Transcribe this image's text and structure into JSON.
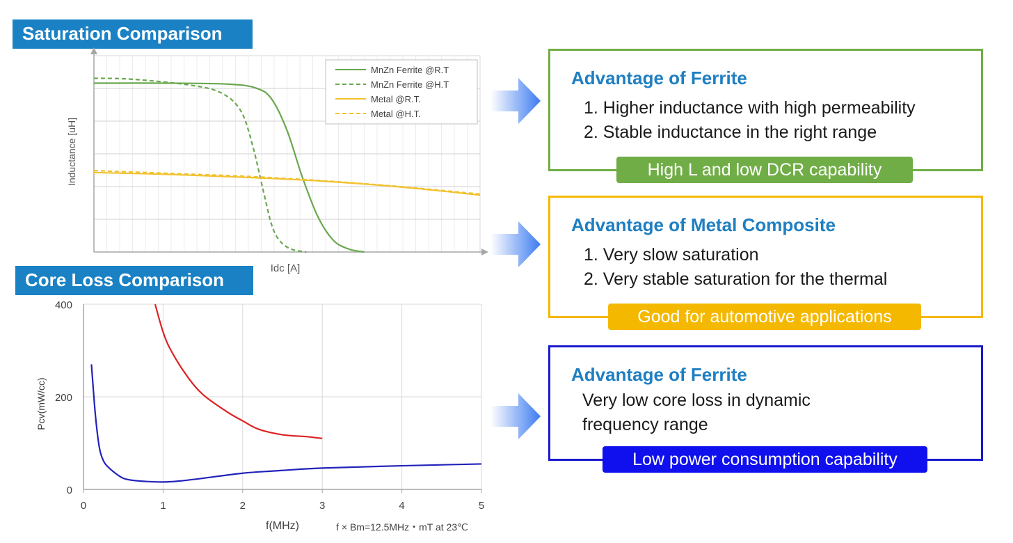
{
  "sections": {
    "saturation_title": "Saturation Comparison",
    "core_loss_title": "Core Loss Comparison",
    "title_bg": "#1a82c4"
  },
  "chart_data": [
    {
      "type": "line",
      "title": "Saturation Comparison",
      "xlabel": "Idc [A]",
      "ylabel": "Inductance [uH]",
      "xlim": [
        0,
        10
      ],
      "ylim": [
        0,
        10
      ],
      "grid": true,
      "axis_ticks_labeled": false,
      "legend_position": "top-right",
      "series": [
        {
          "name": "MnZn Ferrite @R.T",
          "color": "#6aa84f",
          "dash": "solid",
          "x": [
            0,
            2,
            3.5,
            4.2,
            4.6,
            5.0,
            5.4,
            5.8,
            6.2,
            6.6,
            7.0
          ],
          "y": [
            8.6,
            8.6,
            8.55,
            8.35,
            7.8,
            6.2,
            3.8,
            1.8,
            0.6,
            0.15,
            0.0
          ]
        },
        {
          "name": "MnZn Ferrite @H.T",
          "color": "#6aa84f",
          "dash": "dashed",
          "x": [
            0,
            1,
            2.5,
            3.3,
            3.8,
            4.1,
            4.4,
            4.6,
            4.8,
            5.1,
            5.5
          ],
          "y": [
            8.85,
            8.8,
            8.5,
            8.1,
            7.2,
            5.5,
            3.0,
            1.4,
            0.6,
            0.15,
            0.0
          ]
        },
        {
          "name": "Metal @R.T.",
          "color": "#f2c230",
          "dash": "solid",
          "x": [
            0,
            2,
            4,
            6,
            8,
            10
          ],
          "y": [
            4.05,
            3.95,
            3.8,
            3.6,
            3.3,
            2.9
          ]
        },
        {
          "name": "Metal @H.T.",
          "color": "#f2c230",
          "dash": "dashed",
          "x": [
            0,
            2,
            4,
            6,
            8,
            10
          ],
          "y": [
            4.15,
            4.0,
            3.85,
            3.62,
            3.32,
            2.95
          ]
        }
      ]
    },
    {
      "type": "line",
      "title": "Core Loss Comparison",
      "xlabel": "f(MHz)",
      "ylabel": "Pcv(mW/cc)",
      "xlim": [
        0,
        5
      ],
      "ylim": [
        0,
        400
      ],
      "x_ticks": [
        0,
        1,
        2,
        3,
        4,
        5
      ],
      "y_ticks": [
        0,
        200,
        400
      ],
      "grid": true,
      "annotation": "f × Bm=12.5MHz・mT at 23℃",
      "series": [
        {
          "color": "#dd2222",
          "x": [
            0.9,
            1.0,
            1.1,
            1.3,
            1.5,
            1.8,
            2.0,
            2.2,
            2.5,
            2.8,
            3.0
          ],
          "y": [
            400,
            340,
            300,
            245,
            205,
            168,
            148,
            130,
            118,
            114,
            110
          ]
        },
        {
          "color": "#2222bb",
          "x": [
            0.1,
            0.15,
            0.2,
            0.25,
            0.3,
            0.4,
            0.5,
            0.6,
            0.8,
            1.0,
            1.2,
            1.5,
            2.0,
            2.5,
            3.0,
            4.0,
            5.0
          ],
          "y": [
            270,
            160,
            90,
            62,
            50,
            35,
            24,
            20,
            17,
            16,
            18,
            24,
            35,
            41,
            46,
            51,
            55
          ]
        }
      ]
    }
  ],
  "advantages": [
    {
      "heading": "Advantage of Ferrite",
      "lines": [
        "1.  Higher inductance with high permeability",
        "2.  Stable inductance in the right range"
      ],
      "badge": "High L and low DCR capability",
      "border_color": "#70ad47",
      "badge_color": "#70ad47"
    },
    {
      "heading": "Advantage of Metal Composite",
      "lines": [
        "1.  Very slow saturation",
        "2.  Very stable saturation for the thermal"
      ],
      "badge": "Good for automotive applications",
      "border_color": "#f5b800",
      "badge_color": "#f5b800"
    },
    {
      "heading": "Advantage of Ferrite",
      "lines": [
        "Very low core loss in dynamic",
        "frequency range"
      ],
      "badge": "Low power consumption capability",
      "border_color": "#1a1acc",
      "badge_color": "#1010ee"
    }
  ],
  "heading_color": "#1f7fc1"
}
